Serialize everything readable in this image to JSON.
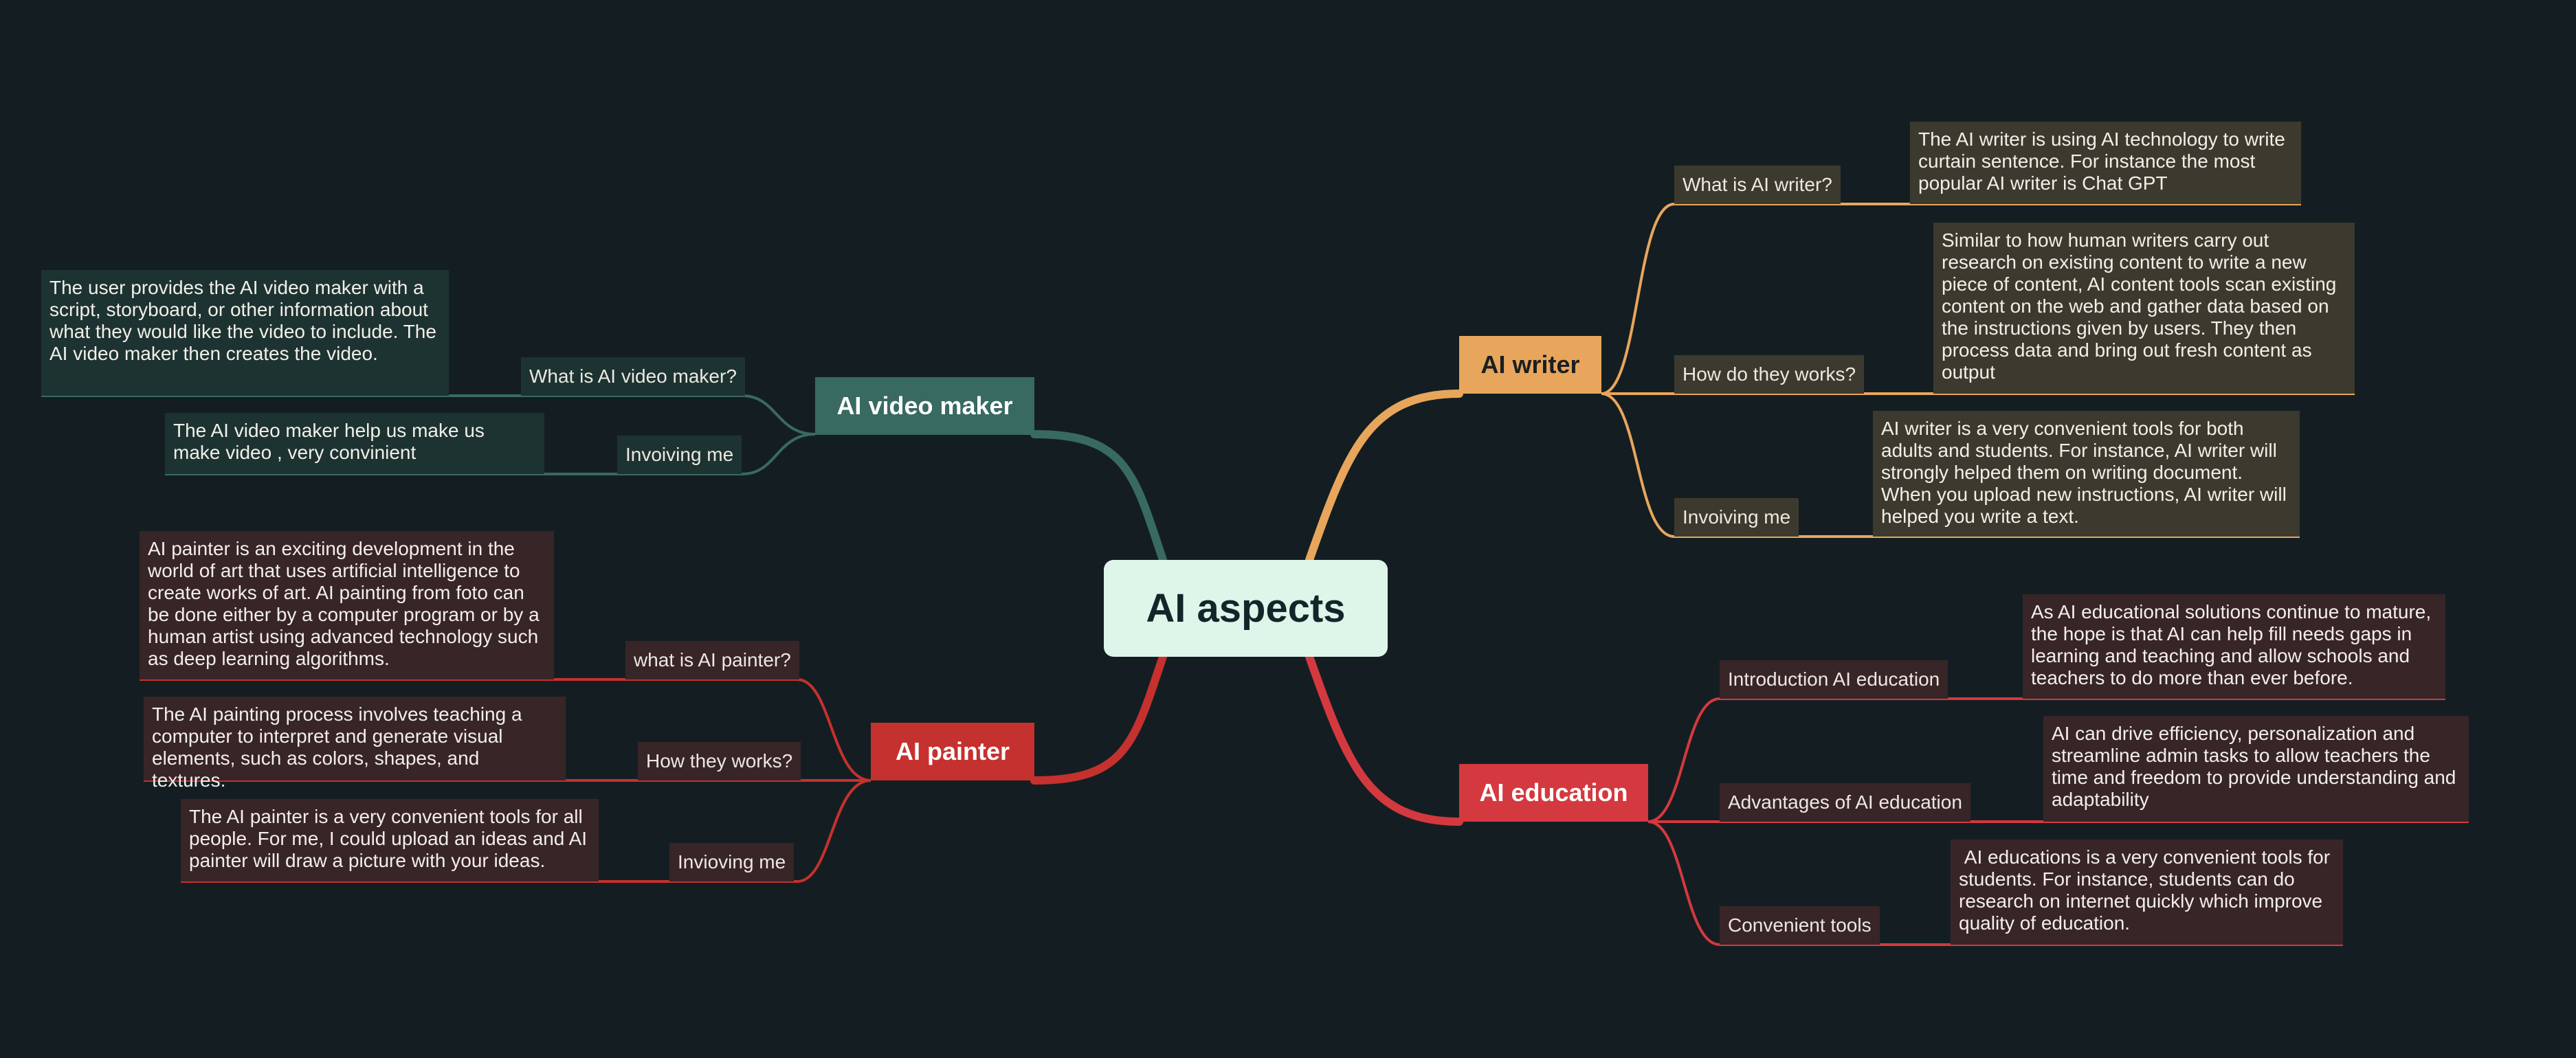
{
  "colors": {
    "background": "#141e22",
    "root_fill": "#def5e9",
    "writer": "#e8a65c",
    "education": "#d4393f",
    "video_maker": "#386a61",
    "painter": "#c5312e"
  },
  "root": {
    "label": "AI aspects"
  },
  "branches": {
    "writer": {
      "label": "AI writer",
      "subtopics": [
        {
          "label": "What is AI writer?",
          "detail": "The AI writer is using AI technology to write curtain sentence. For instance the most popular  AI writer is Chat GPT"
        },
        {
          "label": "How do they works?",
          "detail": "Similar to how human writers carry out research on existing content to write a new piece of content, AI content tools scan existing content on the web and gather data based on the instructions given by users. They then process data and bring out fresh content as output"
        },
        {
          "label": "Invoiving me",
          "detail": "AI writer is a very convenient tools for both adults and students. For instance, AI writer will strongly helped them on writing document.\nWhen you upload new instructions, AI writer will helped you write a text."
        }
      ]
    },
    "education": {
      "label": "AI education",
      "subtopics": [
        {
          "label": "Introduction AI education",
          "detail": "As AI educational solutions continue to mature, the hope is that AI can help fill needs gaps in learning and teaching and allow schools and teachers to do more than ever before."
        },
        {
          "label": "Advantages of AI education",
          "detail": "AI can drive efficiency, personalization and streamline admin tasks to allow teachers the time and freedom to provide understanding and adaptability"
        },
        {
          "label": "Convenient tools",
          "detail": " AI educations is a very convenient tools for students. For instance, students can do research on internet quickly which improve quality of education."
        }
      ]
    },
    "video_maker": {
      "label": "AI video maker",
      "subtopics": [
        {
          "label": "What is AI video maker?",
          "detail": "The user provides the AI video maker with a script, storyboard, or other information about what they would like the video to include. The AI video maker then creates the video."
        },
        {
          "label": "Invoiving me",
          "detail": "The AI video maker help us make us make video , very convinient"
        }
      ]
    },
    "painter": {
      "label": "AI painter",
      "subtopics": [
        {
          "label": "what is AI painter?",
          "detail": "AI painter is an exciting development in the world of art that uses artificial intelligence to create works of art. AI painting from foto can be done either by a computer program or by a human artist using advanced technology such as deep learning algorithms."
        },
        {
          "label": "How they works?",
          "detail": "The AI painting process involves teaching a computer to interpret and generate visual elements, such as colors, shapes, and textures."
        },
        {
          "label": "Invioving me",
          "detail": "The AI painter is a very convenient  tools for all people. For me, I could upload an ideas and AI painter will draw a picture with your ideas."
        }
      ]
    }
  }
}
